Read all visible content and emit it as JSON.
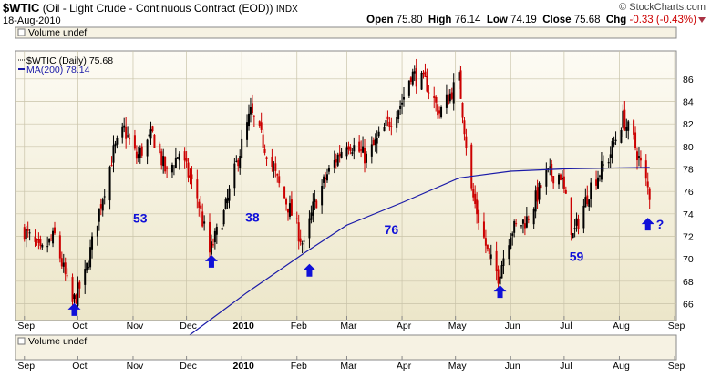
{
  "header": {
    "symbol": "$WTIC",
    "description": "(Oil - Light Crude - Continuous Contract (EOD))",
    "exchange": "INDX",
    "copyright": "© StockCharts.com",
    "date": "18-Aug-2010",
    "open_label": "Open",
    "open": "75.80",
    "high_label": "High",
    "high": "76.14",
    "low_label": "Low",
    "low": "74.19",
    "close_label": "Close",
    "close": "75.68",
    "chg_label": "Chg",
    "chg": "-0.33 (-0.43%)"
  },
  "panels": {
    "top_volume": "Volume undef",
    "bottom_volume": "Volume undef"
  },
  "legend": {
    "price": "$WTIC (Daily) 75.68",
    "ma": "MA(200) 78.14"
  },
  "colors": {
    "up": "#000000",
    "down": "#cc0000",
    "ma": "#1a1aa8",
    "arrow": "#1010d8",
    "annotation": "#1010d8",
    "chg": "#cc0000"
  },
  "chart_data": {
    "type": "candlestick",
    "y_axis_ticks": [
      66,
      68,
      70,
      72,
      74,
      76,
      78,
      80,
      82,
      84,
      86
    ],
    "ylim": [
      64.5,
      88.5
    ],
    "x_axis_ticks": [
      "Sep",
      "Oct",
      "Nov",
      "Dec",
      "2010",
      "Feb",
      "Mar",
      "Apr",
      "May",
      "Jun",
      "Jul",
      "Aug",
      "Sep"
    ],
    "grid": true,
    "price_path": [
      [
        "2009-09-01",
        72.5
      ],
      [
        "2009-09-10",
        70.5
      ],
      [
        "2009-09-18",
        72.0
      ],
      [
        "2009-09-28",
        66.0
      ],
      [
        "2009-10-05",
        68.5
      ],
      [
        "2009-10-14",
        75.0
      ],
      [
        "2009-10-21",
        79.5
      ],
      [
        "2009-10-27",
        81.5
      ],
      [
        "2009-11-03",
        79.0
      ],
      [
        "2009-11-12",
        81.0
      ],
      [
        "2009-11-20",
        77.5
      ],
      [
        "2009-11-27",
        79.5
      ],
      [
        "2009-12-07",
        75.5
      ],
      [
        "2009-12-14",
        70.5
      ],
      [
        "2009-12-22",
        74.0
      ],
      [
        "2009-12-30",
        79.0
      ],
      [
        "2010-01-06",
        83.0
      ],
      [
        "2010-01-14",
        80.0
      ],
      [
        "2010-01-22",
        76.5
      ],
      [
        "2010-01-29",
        74.0
      ],
      [
        "2010-02-05",
        71.0
      ],
      [
        "2010-02-10",
        74.5
      ],
      [
        "2010-02-18",
        77.5
      ],
      [
        "2010-03-01",
        80.5
      ],
      [
        "2010-03-12",
        79.0
      ],
      [
        "2010-03-24",
        82.0
      ],
      [
        "2010-04-01",
        84.0
      ],
      [
        "2010-04-06",
        86.5
      ],
      [
        "2010-04-15",
        85.5
      ],
      [
        "2010-04-22",
        83.0
      ],
      [
        "2010-05-03",
        86.0
      ],
      [
        "2010-05-10",
        76.0
      ],
      [
        "2010-05-20",
        70.0
      ],
      [
        "2010-05-25",
        68.5
      ],
      [
        "2010-06-01",
        72.5
      ],
      [
        "2010-06-10",
        73.5
      ],
      [
        "2010-06-21",
        77.5
      ],
      [
        "2010-06-29",
        77.5
      ],
      [
        "2010-07-06",
        72.0
      ],
      [
        "2010-07-16",
        76.5
      ],
      [
        "2010-07-26",
        79.0
      ],
      [
        "2010-08-03",
        82.5
      ],
      [
        "2010-08-09",
        80.5
      ],
      [
        "2010-08-18",
        75.7
      ]
    ],
    "ma200_path": [
      [
        "2009-12-01",
        63.0
      ],
      [
        "2010-01-04",
        67.0
      ],
      [
        "2010-02-05",
        70.5
      ],
      [
        "2010-03-01",
        73.0
      ],
      [
        "2010-04-01",
        75.0
      ],
      [
        "2010-05-03",
        77.2
      ],
      [
        "2010-06-01",
        77.8
      ],
      [
        "2010-07-01",
        78.0
      ],
      [
        "2010-08-02",
        78.1
      ],
      [
        "2010-08-18",
        78.14
      ]
    ],
    "annotations": [
      {
        "text": "53",
        "date": "2009-11-05",
        "y": 73.2
      },
      {
        "text": "38",
        "date": "2010-01-07",
        "y": 73.3
      },
      {
        "text": "76",
        "date": "2010-03-26",
        "y": 72.2
      },
      {
        "text": "59",
        "date": "2010-07-08",
        "y": 69.8
      }
    ],
    "arrows": [
      {
        "date": "2009-09-29",
        "y": 65.4,
        "label": ""
      },
      {
        "date": "2009-12-15",
        "y": 69.7,
        "label": ""
      },
      {
        "date": "2010-02-08",
        "y": 68.9,
        "label": ""
      },
      {
        "date": "2010-05-26",
        "y": 67.0,
        "label": ""
      },
      {
        "date": "2010-08-17",
        "y": 73.0,
        "label": "?"
      }
    ]
  }
}
